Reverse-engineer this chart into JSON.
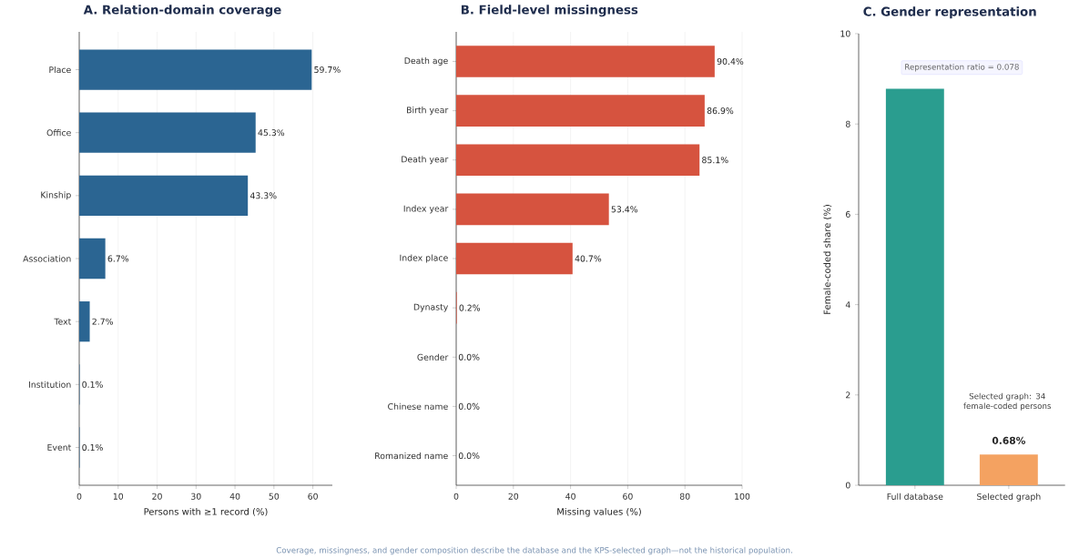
{
  "chart_data": [
    {
      "type": "bar",
      "orientation": "horizontal",
      "title": "A. Relation-domain coverage",
      "xlabel": "Persons with ≥1 record (%)",
      "categories": [
        "Place",
        "Office",
        "Kinship",
        "Association",
        "Text",
        "Institution",
        "Event"
      ],
      "values": [
        59.7,
        45.3,
        43.3,
        6.7,
        2.7,
        0.1,
        0.1
      ],
      "value_labels": [
        "59.7%",
        "45.3%",
        "43.3%",
        "6.7%",
        "2.7%",
        "0.1%",
        "0.1%"
      ],
      "color": "#2b6592",
      "xlim": [
        0,
        65
      ],
      "xticks": [
        0,
        10,
        20,
        30,
        40,
        50,
        60
      ],
      "grid": "x"
    },
    {
      "type": "bar",
      "orientation": "horizontal",
      "title": "B. Field-level missingness",
      "xlabel": "Missing values (%)",
      "categories": [
        "Death age",
        "Birth year",
        "Death year",
        "Index year",
        "Index place",
        "Dynasty",
        "Gender",
        "Chinese name",
        "Romanized name"
      ],
      "values": [
        90.4,
        86.9,
        85.1,
        53.4,
        40.7,
        0.2,
        0.0,
        0.0,
        0.0
      ],
      "value_labels": [
        "90.4%",
        "86.9%",
        "85.1%",
        "53.4%",
        "40.7%",
        "0.2%",
        "0.0%",
        "0.0%",
        "0.0%"
      ],
      "color": "#d6533f",
      "xlim": [
        0,
        100
      ],
      "xticks": [
        0,
        20,
        40,
        60,
        80,
        100
      ],
      "grid": "x"
    },
    {
      "type": "bar",
      "title": "C. Gender representation",
      "ylabel": "Female-coded share (%)",
      "categories": [
        "Full database",
        "Selected graph"
      ],
      "values": [
        8.78,
        0.68
      ],
      "value_labels": [
        null,
        "0.68%"
      ],
      "colors": [
        "#2a9d8f",
        "#f4a261"
      ],
      "ylim": [
        0,
        10
      ],
      "yticks": [
        0,
        2,
        4,
        6,
        8,
        10
      ],
      "annotations": [
        "Representation ratio = 0.078",
        "Selected graph: 34 female-coded persons",
        "Coverage, missingness, and gender composition describe the database and the KPS-selected graph—not the historical population."
      ]
    }
  ]
}
